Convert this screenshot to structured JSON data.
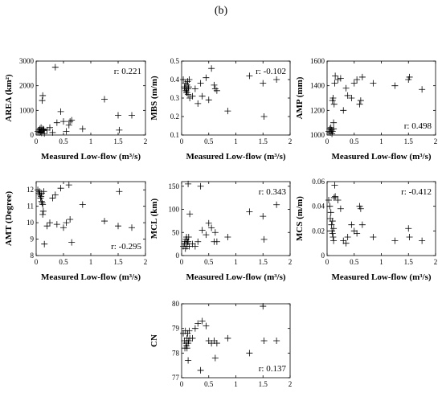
{
  "figure": {
    "panel_label": "(b)"
  },
  "chart_data": [
    {
      "type": "scatter",
      "ylabel": "AREA (km²)",
      "xlabel": "Measured Low-flow (m³/s)",
      "annotation": "r: 0.221",
      "xlim": [
        0,
        2
      ],
      "ylim": [
        0,
        3000
      ],
      "xticks": [
        "0",
        "0.5",
        "1",
        "1.5",
        "2"
      ],
      "yticks": [
        "0",
        "1000",
        "2000",
        "3000"
      ],
      "x": [
        0.03,
        0.05,
        0.06,
        0.07,
        0.08,
        0.09,
        0.1,
        0.11,
        0.12,
        0.13,
        0.14,
        0.15,
        0.1,
        0.12,
        0.2,
        0.25,
        0.3,
        0.35,
        0.38,
        0.45,
        0.5,
        0.55,
        0.6,
        0.62,
        0.65,
        0.85,
        1.25,
        1.5,
        1.52,
        1.75
      ],
      "y": [
        150,
        200,
        100,
        250,
        120,
        300,
        80,
        1400,
        1600,
        180,
        220,
        60,
        150,
        250,
        200,
        300,
        100,
        2750,
        500,
        950,
        550,
        150,
        400,
        550,
        600,
        250,
        1450,
        800,
        200,
        800
      ]
    },
    {
      "type": "scatter",
      "ylabel": "MBS (m/m)",
      "xlabel": "Measured Low-flow (m³/s)",
      "annotation": "r: -0.102",
      "xlim": [
        0,
        2
      ],
      "ylim": [
        0.1,
        0.5
      ],
      "xticks": [
        "0",
        "0.5",
        "1",
        "1.5",
        "2"
      ],
      "yticks": [
        "0.1",
        "0.2",
        "0.3",
        "0.4",
        "0.5"
      ],
      "x": [
        0.03,
        0.05,
        0.06,
        0.07,
        0.08,
        0.09,
        0.1,
        0.11,
        0.12,
        0.13,
        0.14,
        0.15,
        0.1,
        0.12,
        0.2,
        0.25,
        0.3,
        0.35,
        0.38,
        0.45,
        0.5,
        0.55,
        0.6,
        0.62,
        0.65,
        0.85,
        1.25,
        1.5,
        1.52,
        1.75
      ],
      "y": [
        0.4,
        0.36,
        0.35,
        0.38,
        0.34,
        0.33,
        0.37,
        0.39,
        0.32,
        0.36,
        0.4,
        0.3,
        0.33,
        0.35,
        0.31,
        0.35,
        0.27,
        0.38,
        0.31,
        0.41,
        0.29,
        0.46,
        0.37,
        0.35,
        0.34,
        0.23,
        0.42,
        0.38,
        0.2,
        0.4
      ]
    },
    {
      "type": "scatter",
      "ylabel": "AMP (mm)",
      "xlabel": "Measured Low-flow (m³/s)",
      "annotation": "r: 0.498",
      "xlim": [
        0,
        2
      ],
      "ylim": [
        1000,
        1600
      ],
      "xticks": [
        "0",
        "0.5",
        "1",
        "1.5",
        "2"
      ],
      "yticks": [
        "1000",
        "1200",
        "1400",
        "1600"
      ],
      "x": [
        0.03,
        0.05,
        0.06,
        0.07,
        0.08,
        0.09,
        0.1,
        0.11,
        0.12,
        0.13,
        0.14,
        0.15,
        0.1,
        0.12,
        0.2,
        0.25,
        0.3,
        0.35,
        0.38,
        0.45,
        0.5,
        0.55,
        0.6,
        0.62,
        0.65,
        0.85,
        1.25,
        1.5,
        1.52,
        1.75
      ],
      "y": [
        1030,
        1050,
        1020,
        1060,
        1040,
        1010,
        1280,
        1300,
        1100,
        1250,
        1420,
        1480,
        1030,
        1050,
        1450,
        1460,
        1200,
        1380,
        1320,
        1300,
        1420,
        1450,
        1250,
        1280,
        1470,
        1420,
        1400,
        1450,
        1470,
        1370
      ]
    },
    {
      "type": "scatter",
      "ylabel": "AMT (Degree)",
      "xlabel": "Measured Low-flow (m³/s)",
      "annotation": "r: -0.295",
      "xlim": [
        0,
        2
      ],
      "ylim": [
        8,
        12.5
      ],
      "xticks": [
        "0",
        "0.5",
        "1",
        "1.5",
        "2"
      ],
      "yticks": [
        "8",
        "9",
        "10",
        "11",
        "12"
      ],
      "x": [
        0.03,
        0.05,
        0.06,
        0.07,
        0.08,
        0.09,
        0.1,
        0.11,
        0.12,
        0.13,
        0.14,
        0.15,
        0.1,
        0.12,
        0.2,
        0.25,
        0.3,
        0.35,
        0.38,
        0.45,
        0.5,
        0.55,
        0.6,
        0.62,
        0.65,
        0.85,
        1.25,
        1.5,
        1.52,
        1.75
      ],
      "y": [
        12,
        11.8,
        11.9,
        11.7,
        11.5,
        11.6,
        11.8,
        11.2,
        10.5,
        10.7,
        11.9,
        8.7,
        11.3,
        11.1,
        9.8,
        10,
        11.5,
        11.7,
        9.9,
        12.1,
        9.7,
        10,
        12.3,
        10.2,
        8.8,
        11.1,
        10.1,
        9.8,
        11.9,
        9.7
      ]
    },
    {
      "type": "scatter",
      "ylabel": "MCL (km)",
      "xlabel": "Measured Low-flow (m³/s)",
      "annotation": "r: 0.343",
      "xlim": [
        0,
        2
      ],
      "ylim": [
        0,
        160
      ],
      "xticks": [
        "0",
        "0.5",
        "1",
        "1.5",
        "2"
      ],
      "yticks": [
        "0",
        "50",
        "100",
        "150"
      ],
      "x": [
        0.03,
        0.05,
        0.06,
        0.07,
        0.08,
        0.09,
        0.1,
        0.11,
        0.12,
        0.13,
        0.14,
        0.15,
        0.1,
        0.12,
        0.2,
        0.25,
        0.3,
        0.35,
        0.38,
        0.45,
        0.5,
        0.55,
        0.6,
        0.62,
        0.65,
        0.85,
        1.25,
        1.5,
        1.52,
        1.75
      ],
      "y": [
        20,
        25,
        30,
        15,
        35,
        40,
        20,
        30,
        155,
        40,
        20,
        90,
        25,
        30,
        25,
        20,
        30,
        150,
        55,
        45,
        70,
        60,
        30,
        50,
        30,
        40,
        95,
        85,
        35,
        110
      ]
    },
    {
      "type": "scatter",
      "ylabel": "MCS (m/m)",
      "xlabel": "Measured Low-flow (m³/s)",
      "annotation": "r: -0.412",
      "xlim": [
        0,
        2
      ],
      "ylim": [
        0,
        0.06
      ],
      "xticks": [
        "0",
        "0.5",
        "1",
        "1.5",
        "2"
      ],
      "yticks": [
        "0",
        "0.02",
        "0.04",
        "0.06"
      ],
      "x": [
        0.03,
        0.05,
        0.06,
        0.07,
        0.08,
        0.09,
        0.1,
        0.11,
        0.12,
        0.13,
        0.14,
        0.15,
        0.1,
        0.12,
        0.2,
        0.25,
        0.3,
        0.35,
        0.38,
        0.45,
        0.5,
        0.55,
        0.6,
        0.62,
        0.65,
        0.85,
        1.25,
        1.5,
        1.52,
        1.75
      ],
      "y": [
        0.045,
        0.04,
        0.03,
        0.035,
        0.025,
        0.02,
        0.018,
        0.015,
        0.012,
        0.047,
        0.057,
        0.048,
        0.028,
        0.022,
        0.045,
        0.038,
        0.012,
        0.01,
        0.015,
        0.025,
        0.02,
        0.018,
        0.04,
        0.038,
        0.025,
        0.015,
        0.012,
        0.022,
        0.015,
        0.012
      ]
    },
    {
      "type": "scatter",
      "ylabel": "CN",
      "xlabel": "Measured Low-flow (m³/s)",
      "annotation": "r: 0.137",
      "xlim": [
        0,
        2
      ],
      "ylim": [
        77,
        80
      ],
      "xticks": [
        "0",
        "0.5",
        "1",
        "1.5",
        "2"
      ],
      "yticks": [
        "77",
        "78",
        "79",
        "80"
      ],
      "x": [
        0.03,
        0.05,
        0.06,
        0.07,
        0.08,
        0.09,
        0.1,
        0.11,
        0.12,
        0.13,
        0.14,
        0.15,
        0.1,
        0.12,
        0.2,
        0.25,
        0.3,
        0.35,
        0.38,
        0.45,
        0.5,
        0.55,
        0.6,
        0.62,
        0.65,
        0.85,
        1.25,
        1.5,
        1.52,
        1.75
      ],
      "y": [
        78.8,
        78.5,
        78.2,
        78.9,
        78.4,
        78.3,
        78.6,
        78.8,
        77.7,
        78.5,
        78.9,
        78.6,
        78.2,
        78.4,
        78.6,
        79,
        79.2,
        77.3,
        79.3,
        79.1,
        78.5,
        78.4,
        78.5,
        77.8,
        78.4,
        78.6,
        78,
        79.9,
        78.5,
        78.5
      ]
    }
  ]
}
